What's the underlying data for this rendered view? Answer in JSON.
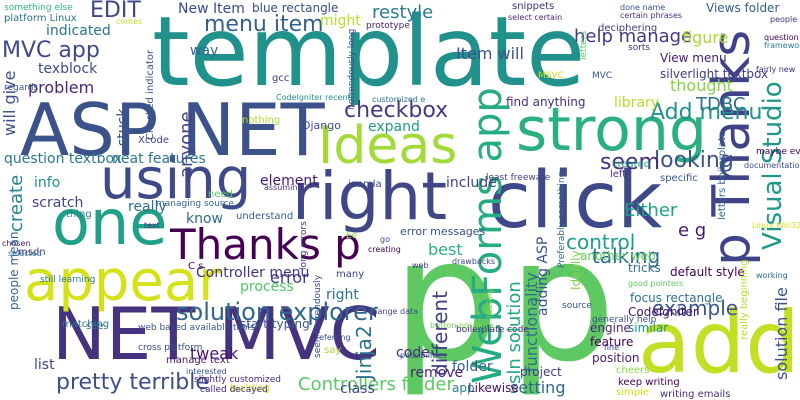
{
  "words": [
    {
      "text": "template",
      "color": "#21918c"
    },
    {
      "text": "p",
      "color": "#5ec962"
    },
    {
      "text": "p",
      "color": "#5ec962"
    },
    {
      "text": "ASP NET",
      "color": "#3b528b"
    },
    {
      "text": "NET MVC",
      "color": "#46337f"
    },
    {
      "text": "click",
      "color": "#3e4989"
    },
    {
      "text": "right",
      "color": "#3f4788"
    },
    {
      "text": "add",
      "color": "#c2df23"
    },
    {
      "text": "strong",
      "color": "#2ab07f"
    },
    {
      "text": "Ideas",
      "color": "#a2da37"
    },
    {
      "text": "using",
      "color": "#3e4a89"
    },
    {
      "text": "one",
      "color": "#1fa088"
    },
    {
      "text": "appear",
      "color": "#d5e21a"
    },
    {
      "text": "p Thanks",
      "color": "#404387"
    },
    {
      "text": "WebForms app",
      "color": "#25ac82"
    },
    {
      "text": "Thanks p",
      "color": "#440154"
    },
    {
      "text": "solution explorer",
      "color": "#30678d"
    },
    {
      "text": "Visual Studio",
      "color": "#1f988b"
    },
    {
      "text": "pretty terrible",
      "color": "#3d4e8a"
    },
    {
      "text": "MVC app",
      "color": "#3f4889"
    },
    {
      "text": "checkbox",
      "color": "#443983"
    },
    {
      "text": "Add menu",
      "color": "#20928c"
    },
    {
      "text": "menu item",
      "color": "#34608d"
    },
    {
      "text": "looking",
      "color": "#3b528b"
    },
    {
      "text": "control",
      "color": "#1f9e89"
    },
    {
      "text": "talking",
      "color": "#2d708e"
    },
    {
      "text": "example",
      "color": "#3b528b"
    },
    {
      "text": "EDIT",
      "color": "#3f4788"
    },
    {
      "text": "seem",
      "color": "#472d7b"
    },
    {
      "text": "help manage",
      "color": "#453882"
    },
    {
      "text": "restyle",
      "color": "#287c8e"
    },
    {
      "text": "Jinja2",
      "color": "#2c728e"
    },
    {
      "text": "sln solution",
      "color": "#22a785"
    },
    {
      "text": "different",
      "color": "#424186"
    },
    {
      "text": "solution file",
      "color": "#3c508b"
    },
    {
      "text": "functionality",
      "color": "#2e6f8e"
    },
    {
      "text": "tweak",
      "color": "#48186a"
    },
    {
      "text": "indicated",
      "color": "#2a768e"
    },
    {
      "text": "problem",
      "color": "#482878"
    },
    {
      "text": "anyone",
      "color": "#404588"
    },
    {
      "text": "Item will",
      "color": "#3b528b"
    },
    {
      "text": "error",
      "color": "#424086"
    },
    {
      "text": "create",
      "color": "#25848e"
    },
    {
      "text": "texblock",
      "color": "#3e4c8a"
    },
    {
      "text": "question textbox",
      "color": "#297b8e"
    },
    {
      "text": "neat features",
      "color": "#2b748e"
    },
    {
      "text": "will give",
      "color": "#3b518b"
    },
    {
      "text": "library",
      "color": "#b5de2b"
    },
    {
      "text": "thought",
      "color": "#86d549"
    },
    {
      "text": "TDBC",
      "color": "#2c718e"
    },
    {
      "text": "Controllers folder",
      "color": "#5cc863"
    },
    {
      "text": "setting",
      "color": "#31678e"
    },
    {
      "text": "folder",
      "color": "#355f8d"
    },
    {
      "text": "class",
      "color": "#3e4a89"
    },
    {
      "text": "code",
      "color": "#472c7a"
    },
    {
      "text": "remove",
      "color": "#482475"
    },
    {
      "text": "process",
      "color": "#52c569"
    },
    {
      "text": "right",
      "color": "#2c728e"
    },
    {
      "text": "Either",
      "color": "#1fa188"
    },
    {
      "text": "best",
      "color": "#2ab07f"
    },
    {
      "text": "e g",
      "color": "#481a6c"
    },
    {
      "text": "list",
      "color": "#3f4889"
    },
    {
      "text": "Controller menu",
      "color": "#46337f"
    },
    {
      "text": "way",
      "color": "#31688e"
    },
    {
      "text": "New Item",
      "color": "#3e4989"
    },
    {
      "text": "expand",
      "color": "#1f9a8a"
    },
    {
      "text": "include",
      "color": "#433e85"
    },
    {
      "text": "find anything",
      "color": "#472f7d"
    },
    {
      "text": "figure",
      "color": "#a8db34"
    },
    {
      "text": "View menu",
      "color": "#482173"
    },
    {
      "text": "info",
      "color": "#21918c"
    },
    {
      "text": "scratch",
      "color": "#404688"
    },
    {
      "text": "know",
      "color": "#31688e"
    },
    {
      "text": "element",
      "color": "#481b6d"
    },
    {
      "text": "really",
      "color": "#2e6e8e"
    },
    {
      "text": "might",
      "color": "#b8de29"
    },
    {
      "text": "stuck",
      "color": "#39568c"
    },
    {
      "text": "Views folder",
      "color": "#34618d"
    },
    {
      "text": "similar",
      "color": "#21918c"
    },
    {
      "text": "start typing",
      "color": "#375a8c"
    },
    {
      "text": "adding ASP",
      "color": "#3b528b"
    },
    {
      "text": "blue rectangle",
      "color": "#3e4a89"
    },
    {
      "text": "silverlight textbox",
      "color": "#433d84"
    },
    {
      "text": "default style",
      "color": "#440154"
    },
    {
      "text": "focus rectangle",
      "color": "#2c728e"
    },
    {
      "text": "CodeIgniter",
      "color": "#481467"
    },
    {
      "text": "engine",
      "color": "#482677"
    },
    {
      "text": "feature",
      "color": "#440154"
    },
    {
      "text": "position",
      "color": "#481c6e"
    },
    {
      "text": "project",
      "color": "#443a83"
    },
    {
      "text": "Likewise",
      "color": "#471063"
    },
    {
      "text": "app",
      "color": "#277f8e"
    },
    {
      "text": "tricks",
      "color": "#2e6f8e"
    },
    {
      "text": "another web",
      "color": "#5ec962"
    },
    {
      "text": "error messages",
      "color": "#3c4f8a"
    },
    {
      "text": "Ideally",
      "color": "#7fd34e"
    },
    {
      "text": "Django",
      "color": "#3e4c8a"
    },
    {
      "text": "Xcode",
      "color": "#414487"
    },
    {
      "text": "gcc",
      "color": "#423f85"
    },
    {
      "text": "msdn",
      "color": "#46327e"
    },
    {
      "text": "many",
      "color": "#404588"
    },
    {
      "text": "say",
      "color": "#a2da37"
    },
    {
      "text": "see",
      "color": "#2f6c8e"
    },
    {
      "text": "need",
      "color": "#5ec962"
    },
    {
      "text": "thing",
      "color": "#27808e"
    },
    {
      "text": "matching",
      "color": "#2a768e"
    },
    {
      "text": "understand",
      "color": "#33638d"
    },
    {
      "text": "people mean",
      "color": "#31688e"
    },
    {
      "text": "cheers",
      "color": "#8fd744"
    },
    {
      "text": "web based available tools",
      "color": "#3b528b"
    },
    {
      "text": "manage text",
      "color": "#481769"
    },
    {
      "text": "building",
      "color": "#c8e020"
    },
    {
      "text": "keep writing",
      "color": "#440154"
    },
    {
      "text": "writing emails",
      "color": "#472d7b"
    },
    {
      "text": "simple",
      "color": "#d0e11c"
    },
    {
      "text": "Checked indicator",
      "color": "#3b528b"
    },
    {
      "text": "horrendously long",
      "color": "#3e4c8a"
    },
    {
      "text": "seen horrendously",
      "color": "#3e4a89"
    },
    {
      "text": "long errors",
      "color": "#46307e"
    },
    {
      "text": "prototype",
      "color": "#481f70"
    },
    {
      "text": "snippets",
      "color": "#472f7d"
    },
    {
      "text": "deciphering",
      "color": "#453781"
    },
    {
      "text": "letters",
      "color": "#5ec962"
    },
    {
      "text": "sorts",
      "color": "#46327e"
    },
    {
      "text": "regards",
      "color": "#3a548c"
    },
    {
      "text": "platform Linux",
      "color": "#2d708e"
    },
    {
      "text": "something else",
      "color": "#35b779"
    },
    {
      "text": "still learning",
      "color": "#2a768e"
    },
    {
      "text": "Preferably something",
      "color": "#31688e"
    },
    {
      "text": "MSVC",
      "color": "#d0e11c"
    },
    {
      "text": "MVC",
      "color": "#3b528b"
    },
    {
      "text": "cross platform",
      "color": "#3e4a89"
    },
    {
      "text": "boilerplate code",
      "color": "#482374"
    },
    {
      "text": "generally help",
      "color": "#3d4e8a"
    },
    {
      "text": "created",
      "color": "#1f9e89"
    },
    {
      "text": "left",
      "color": "#46307e"
    },
    {
      "text": "specific",
      "color": "#39558c"
    },
    {
      "text": "least freeware",
      "color": "#433e85"
    },
    {
      "text": "slightly customized",
      "color": "#472a7a"
    },
    {
      "text": "called decayed",
      "color": "#482979"
    },
    {
      "text": "nothing",
      "color": "#addc30"
    },
    {
      "text": "joomla",
      "color": "#404688"
    },
    {
      "text": "managing source",
      "color": "#31688e"
    },
    {
      "text": "change data",
      "color": "#3e4989"
    },
    {
      "text": "text",
      "color": "#46307e"
    },
    {
      "text": "Ee",
      "color": "#8fd744"
    },
    {
      "text": "C s",
      "color": "#440154"
    },
    {
      "text": "really beginning",
      "color": "#b5de2b"
    },
    {
      "text": "letters boilerplate",
      "color": "#31688e"
    },
    {
      "text": "maybe even",
      "color": "#440154"
    },
    {
      "text": "source",
      "color": "#3b528b"
    },
    {
      "text": "button positions",
      "color": "#7ad151"
    },
    {
      "text": "comes",
      "color": "#c2df23"
    },
    {
      "text": "documentation",
      "color": "#3e4989"
    },
    {
      "text": "done name",
      "color": "#3b528b"
    },
    {
      "text": "fairly new",
      "color": "#472d7b"
    },
    {
      "text": "certain phrases",
      "color": "#46327e"
    },
    {
      "text": "CodeIgniter recently",
      "color": "#21918c"
    },
    {
      "text": "customized e",
      "color": "#2a788e"
    },
    {
      "text": "creating",
      "color": "#440154"
    },
    {
      "text": "Linux Win32",
      "color": "#d8e219"
    },
    {
      "text": "select certain",
      "color": "#482475"
    },
    {
      "text": "assuming",
      "color": "#46327e"
    },
    {
      "text": "possibilities",
      "color": "#3b528b"
    },
    {
      "text": "good pointers",
      "color": "#5ec962"
    },
    {
      "text": "referring",
      "color": "#3e4a89"
    },
    {
      "text": "working",
      "color": "#31688e"
    },
    {
      "text": "interested",
      "color": "#3b528b"
    },
    {
      "text": "go",
      "color": "#3e4989"
    },
    {
      "text": "drawbacks",
      "color": "#404688"
    },
    {
      "text": "selected",
      "color": "#2a788e"
    },
    {
      "text": "people",
      "color": "#46327e"
    },
    {
      "text": "chosen",
      "color": "#481769"
    },
    {
      "text": "question",
      "color": "#440154"
    },
    {
      "text": "framework",
      "color": "#2a788e"
    },
    {
      "text": "fine",
      "color": "#3e4989"
    },
    {
      "text": "Ideally",
      "color": "#7ad151"
    },
    {
      "text": "web",
      "color": "#46327e"
    }
  ]
}
